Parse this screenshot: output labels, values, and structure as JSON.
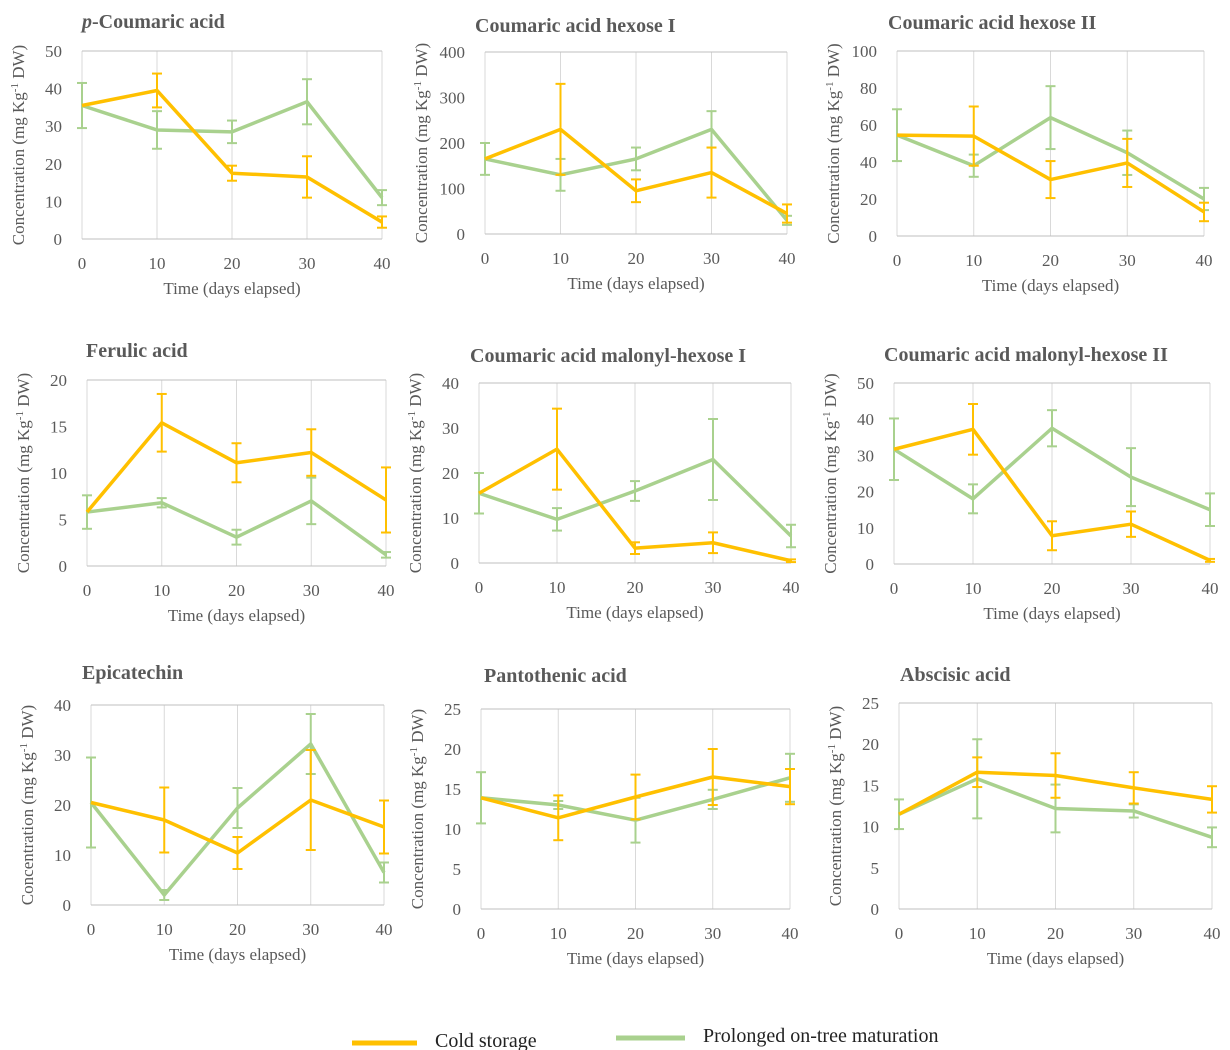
{
  "chart_data": [
    {
      "type": "line",
      "title": "p-Coumaric acid",
      "xlabel": "Time (days elapsed)",
      "ylabel": "Concentration (mg Kg-1 DW)",
      "x": [
        0,
        10,
        20,
        30,
        40
      ],
      "xlim": [
        0,
        40
      ],
      "ylim": [
        0,
        50
      ],
      "yticks": [
        0,
        10,
        20,
        30,
        40,
        50
      ],
      "grid": "vertical",
      "series": [
        {
          "name": "Cold storage",
          "values": [
            35.5,
            39.5,
            17.5,
            16.5,
            4.5
          ],
          "errors": [
            0,
            4.5,
            2,
            5.5,
            1.5
          ]
        },
        {
          "name": "Prolonged on-tree maturation",
          "values": [
            35.5,
            29,
            28.5,
            36.5,
            11
          ],
          "errors": [
            6,
            5,
            3,
            6,
            2
          ]
        }
      ]
    },
    {
      "type": "line",
      "title": "Coumaric acid hexose I",
      "xlabel": "Time (days elapsed)",
      "ylabel": "Concentration (mg Kg-1 DW)",
      "x": [
        0,
        10,
        20,
        30,
        40
      ],
      "xlim": [
        0,
        40
      ],
      "ylim": [
        0,
        400
      ],
      "yticks": [
        0,
        100,
        200,
        300,
        400
      ],
      "grid": "vertical",
      "series": [
        {
          "name": "Cold storage",
          "values": [
            165,
            230,
            95,
            135,
            45
          ],
          "errors": [
            0,
            100,
            25,
            55,
            20
          ]
        },
        {
          "name": "Prolonged on-tree maturation",
          "values": [
            165,
            130,
            165,
            230,
            30
          ],
          "errors": [
            35,
            35,
            25,
            40,
            10
          ]
        }
      ]
    },
    {
      "type": "line",
      "title": "Coumaric acid hexose II",
      "xlabel": "Time (days elapsed)",
      "ylabel": "Concentration (mg Kg-1 DW)",
      "x": [
        0,
        10,
        20,
        30,
        40
      ],
      "xlim": [
        0,
        40
      ],
      "ylim": [
        0,
        100
      ],
      "yticks": [
        0,
        20,
        40,
        60,
        80,
        100
      ],
      "grid": "vertical",
      "series": [
        {
          "name": "Cold storage",
          "values": [
            54.5,
            54,
            30.5,
            39.5,
            13
          ],
          "errors": [
            0,
            16,
            10,
            13,
            5
          ]
        },
        {
          "name": "Prolonged on-tree maturation",
          "values": [
            54.5,
            38,
            64,
            45,
            20
          ],
          "errors": [
            14,
            6,
            17,
            12,
            6
          ]
        }
      ]
    },
    {
      "type": "line",
      "title": "Ferulic acid",
      "xlabel": "Time (days elapsed)",
      "ylabel": "Concentration (mg Kg-1 DW)",
      "x": [
        0,
        10,
        20,
        30,
        40
      ],
      "xlim": [
        0,
        40
      ],
      "ylim": [
        0,
        20
      ],
      "yticks": [
        0,
        5,
        10,
        15,
        20
      ],
      "grid": "vertical",
      "series": [
        {
          "name": "Cold storage",
          "values": [
            5.8,
            15.4,
            11.1,
            12.2,
            7.1
          ],
          "errors": [
            0,
            3.1,
            2.1,
            2.5,
            3.5
          ]
        },
        {
          "name": "Prolonged on-tree maturation",
          "values": [
            5.8,
            6.8,
            3.1,
            7,
            1.2
          ],
          "errors": [
            1.8,
            0.5,
            0.8,
            2.5,
            0.3
          ]
        }
      ]
    },
    {
      "type": "line",
      "title": "Coumaric acid malonyl-hexose I",
      "xlabel": "Time (days elapsed)",
      "ylabel": "Concentration (mg Kg-1 DW)",
      "x": [
        0,
        10,
        20,
        30,
        40
      ],
      "xlim": [
        0,
        40
      ],
      "ylim": [
        0,
        40
      ],
      "yticks": [
        0,
        10,
        20,
        30,
        40
      ],
      "grid": "vertical",
      "series": [
        {
          "name": "Cold storage",
          "values": [
            15.5,
            25.3,
            3.3,
            4.5,
            0.5
          ],
          "errors": [
            0,
            9,
            1.3,
            2.3,
            0.3
          ]
        },
        {
          "name": "Prolonged on-tree maturation",
          "values": [
            15.5,
            9.7,
            16,
            23,
            6
          ],
          "errors": [
            4.5,
            2.5,
            2.2,
            9,
            2.5
          ]
        }
      ]
    },
    {
      "type": "line",
      "title": "Coumaric acid malonyl-hexose II",
      "xlabel": "Time (days elapsed)",
      "ylabel": "Concentration (mg Kg-1 DW)",
      "x": [
        0,
        10,
        20,
        30,
        40
      ],
      "xlim": [
        0,
        40
      ],
      "ylim": [
        0,
        50
      ],
      "yticks": [
        0,
        10,
        20,
        30,
        40,
        50
      ],
      "grid": "vertical",
      "series": [
        {
          "name": "Cold storage",
          "values": [
            31.7,
            37.2,
            7.8,
            11,
            1
          ],
          "errors": [
            0,
            7,
            4,
            3.5,
            0.4
          ]
        },
        {
          "name": "Prolonged on-tree maturation",
          "values": [
            31.7,
            18,
            37.5,
            24,
            15
          ],
          "errors": [
            8.5,
            4,
            5,
            8,
            4.5
          ]
        }
      ]
    },
    {
      "type": "line",
      "title": "Epicatechin",
      "xlabel": "Time (days elapsed)",
      "ylabel": "Concentration (mg Kg-1 DW)",
      "x": [
        0,
        10,
        20,
        30,
        40
      ],
      "xlim": [
        0,
        40
      ],
      "ylim": [
        0,
        40
      ],
      "yticks": [
        0,
        10,
        20,
        30,
        40
      ],
      "grid": "vertical",
      "series": [
        {
          "name": "Cold storage",
          "values": [
            20.5,
            17,
            10.4,
            21,
            15.6
          ],
          "errors": [
            0,
            6.5,
            3.2,
            10,
            5.3
          ]
        },
        {
          "name": "Prolonged on-tree maturation",
          "values": [
            20.5,
            2,
            19.4,
            32.2,
            6.5
          ],
          "errors": [
            9,
            1,
            4,
            6,
            2
          ]
        }
      ]
    },
    {
      "type": "line",
      "title": "Pantothenic acid",
      "xlabel": "Time (days elapsed)",
      "ylabel": "Concentration (mg Kg-1 DW)",
      "x": [
        0,
        10,
        20,
        30,
        40
      ],
      "xlim": [
        0,
        40
      ],
      "ylim": [
        0,
        25
      ],
      "yticks": [
        0,
        5,
        10,
        15,
        20,
        25
      ],
      "grid": "vertical",
      "series": [
        {
          "name": "Cold storage",
          "values": [
            13.9,
            11.4,
            14,
            16.5,
            15.3
          ],
          "errors": [
            0,
            2.8,
            2.8,
            3.5,
            2.2
          ]
        },
        {
          "name": "Prolonged on-tree maturation",
          "values": [
            13.9,
            13,
            11.1,
            13.7,
            16.4
          ],
          "errors": [
            3.2,
            0.5,
            2.8,
            1.2,
            3
          ]
        }
      ]
    },
    {
      "type": "line",
      "title": "Abscisic acid",
      "xlabel": "Time (days elapsed)",
      "ylabel": "Concentration (mg Kg-1 DW)",
      "x": [
        0,
        10,
        20,
        30,
        40
      ],
      "xlim": [
        0,
        40
      ],
      "ylim": [
        0,
        25
      ],
      "yticks": [
        0,
        5,
        10,
        15,
        20,
        25
      ],
      "grid": "vertical",
      "series": [
        {
          "name": "Cold storage",
          "values": [
            11.5,
            16.6,
            16.2,
            14.7,
            13.3
          ],
          "errors": [
            0,
            1.8,
            2.7,
            1.9,
            1.6
          ]
        },
        {
          "name": "Prolonged on-tree maturation",
          "values": [
            11.5,
            15.8,
            12.2,
            11.9,
            8.7
          ],
          "errors": [
            1.8,
            4.8,
            2.9,
            0.8,
            1.2
          ]
        }
      ]
    }
  ],
  "legend": {
    "items": [
      {
        "label": "Cold storage",
        "color": "#ffc000"
      },
      {
        "label": "Prolonged on-tree maturation",
        "color": "#a9d18e"
      }
    ],
    "placement": "bottom"
  }
}
